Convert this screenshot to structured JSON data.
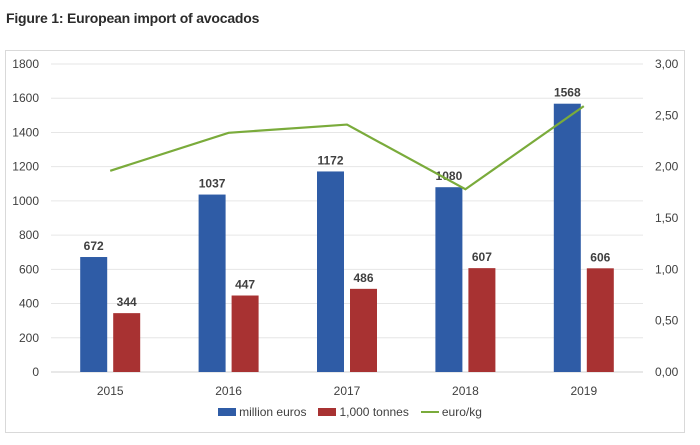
{
  "title": "Figure 1: European import of avocados",
  "chart_data": {
    "type": "bar",
    "title": "Figure 1: European import of avocados",
    "categories": [
      "2015",
      "2016",
      "2017",
      "2018",
      "2019"
    ],
    "series": [
      {
        "name": "million euros",
        "type": "bar",
        "axis": "left",
        "color": "#2f5ca6",
        "values": [
          672,
          1037,
          1172,
          1080,
          1568
        ],
        "labels": [
          "672",
          "1037",
          "1172",
          "1080",
          "1568"
        ]
      },
      {
        "name": "1,000 tonnes",
        "type": "bar",
        "axis": "left",
        "color": "#a83232",
        "values": [
          344,
          447,
          486,
          607,
          606
        ],
        "labels": [
          "344",
          "447",
          "486",
          "607",
          "606"
        ]
      },
      {
        "name": "euro/kg",
        "type": "line",
        "axis": "right",
        "color": "#7aab3b",
        "values": [
          1.96,
          2.33,
          2.41,
          1.78,
          2.59
        ]
      }
    ],
    "y_left": {
      "range": [
        0,
        1800
      ],
      "ticks": [
        "0",
        "200",
        "400",
        "600",
        "800",
        "1000",
        "1200",
        "1400",
        "1600",
        "1800"
      ]
    },
    "y_right": {
      "range": [
        0,
        3
      ],
      "ticks": [
        "0,00",
        "0,50",
        "1,00",
        "1,50",
        "2,00",
        "2,50",
        "3,00"
      ]
    },
    "grid": true,
    "legend_position": "bottom"
  }
}
